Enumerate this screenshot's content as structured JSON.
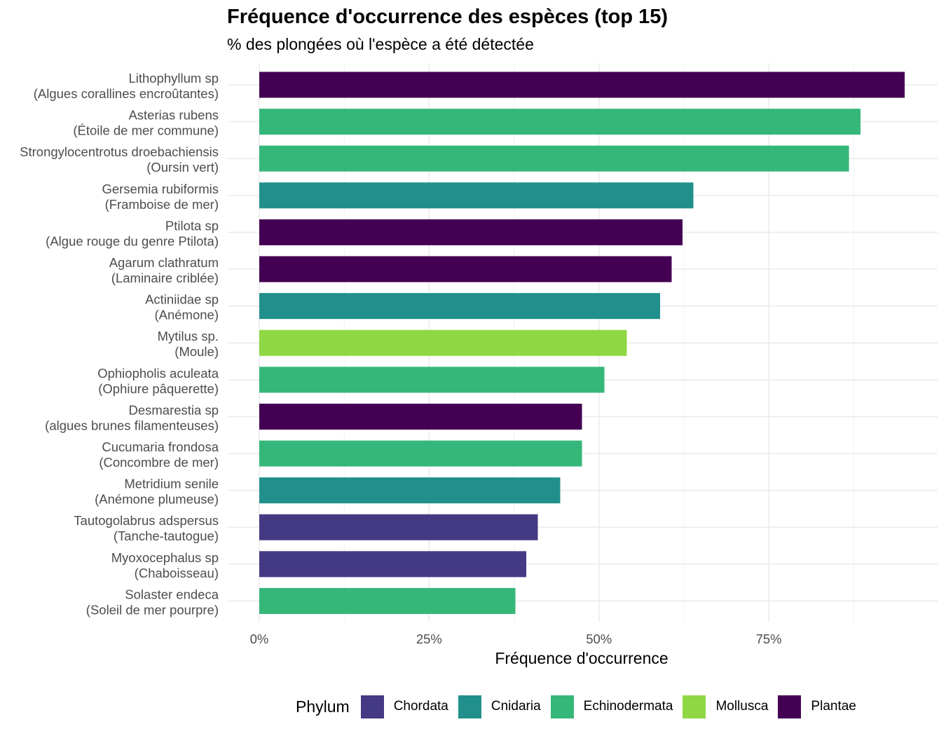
{
  "chart_data": {
    "type": "bar",
    "orientation": "horizontal",
    "title": "Fréquence d'occurrence des espèces (top 15)",
    "subtitle": "% des plongées où l'espèce a été détectée",
    "xlabel": "Fréquence d'occurrence",
    "ylabel": "",
    "xlim": [
      0,
      100
    ],
    "x_ticks": [
      0,
      25,
      50,
      75
    ],
    "x_tick_labels": [
      "0%",
      "25%",
      "50%",
      "75%"
    ],
    "grid": true,
    "legend": {
      "title": "Phylum",
      "position": "bottom",
      "entries": [
        {
          "name": "Chordata",
          "color": "#443983"
        },
        {
          "name": "Cnidaria",
          "color": "#21908C"
        },
        {
          "name": "Echinodermata",
          "color": "#35B779"
        },
        {
          "name": "Mollusca",
          "color": "#8FD744"
        },
        {
          "name": "Plantae",
          "color": "#440154"
        }
      ]
    },
    "bars": [
      {
        "species": "Lithophyllum sp",
        "common": "(Algues corallines encroûtantes)",
        "phylum": "Plantae",
        "value": 95
      },
      {
        "species": "Asterias rubens",
        "common": "(Étoile de mer commune)",
        "phylum": "Echinodermata",
        "value": 88.5
      },
      {
        "species": "Strongylocentrotus droebachiensis",
        "common": "(Oursin vert)",
        "phylum": "Echinodermata",
        "value": 86.8
      },
      {
        "species": "Gersemia rubiformis",
        "common": "(Framboise de mer)",
        "phylum": "Cnidaria",
        "value": 63.9
      },
      {
        "species": "Ptilota sp",
        "common": "(Algue rouge du genre Ptilota)",
        "phylum": "Plantae",
        "value": 62.3
      },
      {
        "species": "Agarum clathratum",
        "common": "(Laminaire criblée)",
        "phylum": "Plantae",
        "value": 60.7
      },
      {
        "species": "Actiniidae sp",
        "common": "(Anémone)",
        "phylum": "Cnidaria",
        "value": 59
      },
      {
        "species": "Mytilus sp.",
        "common": "(Moule)",
        "phylum": "Mollusca",
        "value": 54.1
      },
      {
        "species": "Ophiopholis aculeata",
        "common": "(Ophiure pâquerette)",
        "phylum": "Echinodermata",
        "value": 50.8
      },
      {
        "species": "Desmarestia sp",
        "common": "(algues brunes filamenteuses)",
        "phylum": "Plantae",
        "value": 47.5
      },
      {
        "species": "Cucumaria frondosa",
        "common": "(Concombre de mer)",
        "phylum": "Echinodermata",
        "value": 47.5
      },
      {
        "species": "Metridium senile",
        "common": "(Anémone plumeuse)",
        "phylum": "Cnidaria",
        "value": 44.3
      },
      {
        "species": "Tautogolabrus adspersus",
        "common": "(Tanche-tautogue)",
        "phylum": "Chordata",
        "value": 41
      },
      {
        "species": "Myoxocephalus sp",
        "common": "(Chaboisseau)",
        "phylum": "Chordata",
        "value": 39.3
      },
      {
        "species": "Solaster endeca",
        "common": "(Soleil de mer pourpre)",
        "phylum": "Echinodermata",
        "value": 37.7
      }
    ]
  }
}
